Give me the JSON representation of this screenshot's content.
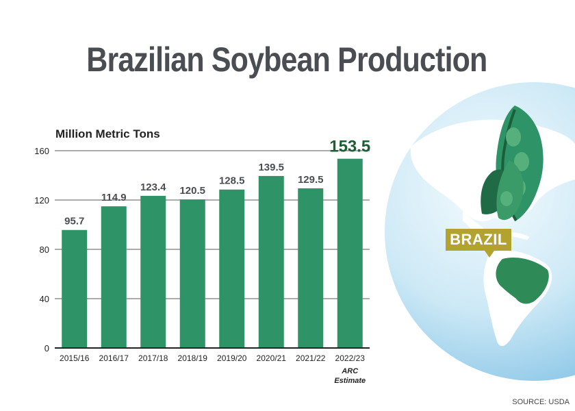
{
  "title": "Brazilian Soybean Production",
  "source": "SOURCE: USDA",
  "map_label": "BRAZIL",
  "colors": {
    "bar": "#2e9467",
    "highlight_label": "#1e5e34",
    "label": "#4a4d52",
    "map_tag": "#b2a230"
  },
  "icons": [
    "globe-icon",
    "soybean-pod-icon"
  ],
  "chart_data": {
    "type": "bar",
    "title": "Brazilian Soybean Production",
    "ylabel": "Million Metric Tons",
    "xlabel": "",
    "categories": [
      "2015/16",
      "2016/17",
      "2017/18",
      "2018/19",
      "2019/20",
      "2020/21",
      "2021/22",
      "2022/23"
    ],
    "category_notes": [
      "",
      "",
      "",
      "",
      "",
      "",
      "",
      "ARC Estimate"
    ],
    "values": [
      95.7,
      114.9,
      123.4,
      120.5,
      128.5,
      139.5,
      129.5,
      153.5
    ],
    "value_labels": [
      "95.7",
      "114.9",
      "123.4",
      "120.5",
      "128.5",
      "139.5",
      "129.5",
      "153.5"
    ],
    "ylim": [
      0,
      160
    ],
    "yticks": [
      0,
      40,
      80,
      120,
      160
    ],
    "grid": true,
    "highlight_index": 7
  }
}
